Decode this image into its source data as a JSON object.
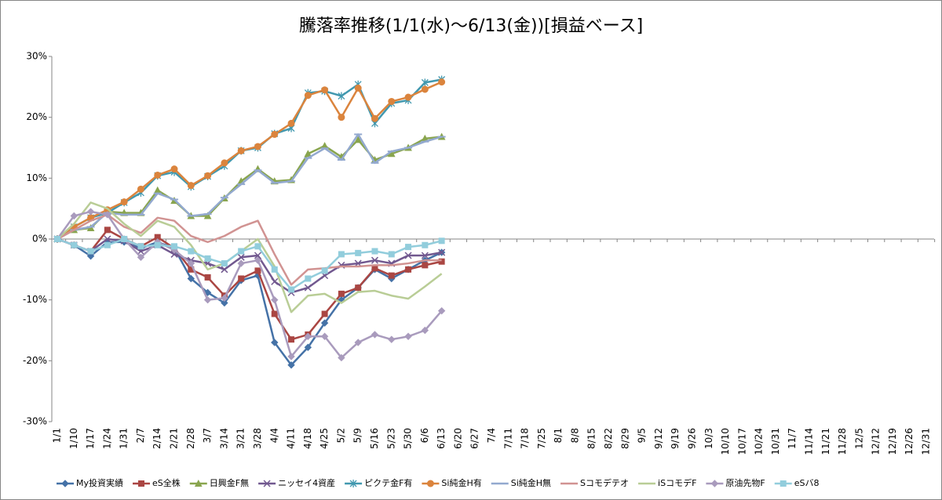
{
  "chart_data": {
    "type": "line",
    "title": "騰落率推移(1/1(水)～6/13(金))[損益ベース]",
    "categories": [
      "1/1",
      "1/10",
      "1/17",
      "1/24",
      "1/31",
      "2/7",
      "2/14",
      "2/21",
      "2/28",
      "3/7",
      "3/14",
      "3/21",
      "3/28",
      "4/4",
      "4/11",
      "4/18",
      "4/25",
      "5/2",
      "5/9",
      "5/16",
      "5/23",
      "5/30",
      "6/6",
      "6/13",
      "6/20",
      "6/27",
      "7/4",
      "7/11",
      "7/18",
      "7/25",
      "8/1",
      "8/8",
      "8/15",
      "8/22",
      "8/29",
      "9/5",
      "9/12",
      "9/19",
      "9/26",
      "10/3",
      "10/10",
      "10/17",
      "10/24",
      "10/31",
      "11/7",
      "11/14",
      "11/21",
      "11/28",
      "12/5",
      "12/12",
      "12/19",
      "12/26",
      "12/31"
    ],
    "ylim": [
      -30,
      30
    ],
    "yticks": [
      {
        "value": -30,
        "label": "-30%"
      },
      {
        "value": -20,
        "label": "-20%"
      },
      {
        "value": -10,
        "label": "-10%"
      },
      {
        "value": 0,
        "label": "0%"
      },
      {
        "value": 10,
        "label": "10%"
      },
      {
        "value": 20,
        "label": "20%"
      },
      {
        "value": 30,
        "label": "30%"
      }
    ],
    "grid": false,
    "legend": "bottom",
    "series": [
      {
        "name": "My投資実績",
        "color": "#4572A7",
        "marker": "diamond",
        "values": [
          0,
          -1,
          -2.8,
          -0.5,
          -0.5,
          -1.5,
          -0.5,
          -1.5,
          -6.5,
          -8.8,
          -10.5,
          -6.8,
          -6,
          -17,
          -20.7,
          -17.8,
          -13.8,
          -10,
          -8,
          -5,
          -6.5,
          -5,
          -3.5,
          -2.2,
          null,
          null,
          null,
          null,
          null,
          null,
          null,
          null,
          null,
          null,
          null,
          null,
          null,
          null,
          null,
          null,
          null,
          null,
          null,
          null,
          null,
          null,
          null,
          null,
          null,
          null,
          null,
          null,
          null
        ]
      },
      {
        "name": "eS全株",
        "color": "#AA4643",
        "marker": "square",
        "values": [
          0,
          -1,
          -2,
          1.5,
          0,
          -1.2,
          0.3,
          -1.5,
          -5,
          -6.3,
          -9.3,
          -6.5,
          -5.2,
          -12.3,
          -16.5,
          -15.7,
          -12.3,
          -9,
          -8,
          -4.8,
          -6,
          -5,
          -4.3,
          -3.7,
          null,
          null,
          null,
          null,
          null,
          null,
          null,
          null,
          null,
          null,
          null,
          null,
          null,
          null,
          null,
          null,
          null,
          null,
          null,
          null,
          null,
          null,
          null,
          null,
          null,
          null,
          null,
          null,
          null
        ]
      },
      {
        "name": "日興金F無",
        "color": "#89A54E",
        "marker": "triangle",
        "values": [
          0,
          1.5,
          1.8,
          4.5,
          4.3,
          4.3,
          8,
          6.3,
          3.8,
          3.8,
          6.7,
          9.5,
          11.5,
          9.5,
          9.7,
          14,
          15.3,
          13.5,
          16.3,
          13,
          14,
          15,
          16.5,
          16.8,
          null,
          null,
          null,
          null,
          null,
          null,
          null,
          null,
          null,
          null,
          null,
          null,
          null,
          null,
          null,
          null,
          null,
          null,
          null,
          null,
          null,
          null,
          null,
          null,
          null,
          null,
          null,
          null,
          null
        ]
      },
      {
        "name": "ニッセイ4資産",
        "color": "#71588F",
        "marker": "x",
        "values": [
          0,
          -1,
          -2,
          0,
          -0.3,
          -2,
          -1,
          -2.5,
          -3.5,
          -4,
          -5,
          -3,
          -2.7,
          -7,
          -8.8,
          -8,
          -6,
          -4.3,
          -4,
          -3.5,
          -4,
          -2.7,
          -2.7,
          -2.2,
          null,
          null,
          null,
          null,
          null,
          null,
          null,
          null,
          null,
          null,
          null,
          null,
          null,
          null,
          null,
          null,
          null,
          null,
          null,
          null,
          null,
          null,
          null,
          null,
          null,
          null,
          null,
          null,
          null
        ]
      },
      {
        "name": "ピクテ金F有",
        "color": "#4198AF",
        "marker": "star",
        "values": [
          0,
          2,
          3.5,
          4.3,
          6,
          7.6,
          10.4,
          11,
          8.6,
          10.3,
          12,
          14.5,
          15,
          17.3,
          18.2,
          24,
          24.3,
          23.5,
          25.4,
          19,
          22.3,
          22.8,
          25.7,
          26.2,
          null,
          null,
          null,
          null,
          null,
          null,
          null,
          null,
          null,
          null,
          null,
          null,
          null,
          null,
          null,
          null,
          null,
          null,
          null,
          null,
          null,
          null,
          null,
          null,
          null,
          null,
          null,
          null,
          null
        ]
      },
      {
        "name": "Si純金H有",
        "color": "#DB843D",
        "marker": "circle",
        "values": [
          0,
          2,
          3.5,
          4.8,
          6.1,
          8.2,
          10.5,
          11.5,
          8.8,
          10.4,
          12.5,
          14.5,
          15.2,
          17.2,
          19,
          23.6,
          24.5,
          20,
          24.8,
          19.8,
          22.6,
          23.3,
          24.6,
          25.8,
          null,
          null,
          null,
          null,
          null,
          null,
          null,
          null,
          null,
          null,
          null,
          null,
          null,
          null,
          null,
          null,
          null,
          null,
          null,
          null,
          null,
          null,
          null,
          null,
          null,
          null,
          null,
          null,
          null
        ]
      },
      {
        "name": "Si純金H無",
        "color": "#93A9CF",
        "marker": "plus",
        "values": [
          0,
          1.5,
          2,
          4.3,
          4,
          4,
          7.5,
          6.5,
          3.8,
          4.1,
          6.8,
          9,
          11.3,
          9.2,
          9.5,
          13.3,
          14.9,
          13,
          17.2,
          12.5,
          14.4,
          15,
          16,
          16.8,
          null,
          null,
          null,
          null,
          null,
          null,
          null,
          null,
          null,
          null,
          null,
          null,
          null,
          null,
          null,
          null,
          null,
          null,
          null,
          null,
          null,
          null,
          null,
          null,
          null,
          null,
          null,
          null,
          null
        ]
      },
      {
        "name": "Sコモデテオ",
        "color": "#D19392",
        "marker": "none",
        "values": [
          0,
          1.5,
          3,
          4,
          2,
          1,
          3.5,
          3,
          0.5,
          -0.5,
          0.5,
          2,
          3,
          -2.5,
          -7.5,
          -5,
          -4.8,
          -4.5,
          -4.5,
          -4.3,
          -4.3,
          -4,
          -3.5,
          -3.5,
          null,
          null,
          null,
          null,
          null,
          null,
          null,
          null,
          null,
          null,
          null,
          null,
          null,
          null,
          null,
          null,
          null,
          null,
          null,
          null,
          null,
          null,
          null,
          null,
          null,
          null,
          null,
          null,
          null
        ]
      },
      {
        "name": "iSコモデF",
        "color": "#B9CD96",
        "marker": "none",
        "values": [
          0,
          2.5,
          6,
          5,
          2.5,
          0.5,
          3,
          2,
          -1,
          -5,
          -4,
          -2,
          0,
          -4.5,
          -12,
          -9.3,
          -9,
          -10.5,
          -8.7,
          -8.5,
          -9.3,
          -9.8,
          -7.8,
          -5.7,
          null,
          null,
          null,
          null,
          null,
          null,
          null,
          null,
          null,
          null,
          null,
          null,
          null,
          null,
          null,
          null,
          null,
          null,
          null,
          null,
          null,
          null,
          null,
          null,
          null,
          null,
          null,
          null,
          null
        ]
      },
      {
        "name": "原油先物F",
        "color": "#A99BBD",
        "marker": "diamond",
        "values": [
          0,
          3.8,
          4.5,
          4,
          0,
          -3,
          -0.5,
          -1.8,
          -4,
          -10,
          -9.7,
          -4,
          -3.5,
          -10,
          -19.3,
          -16,
          -16,
          -19.5,
          -17,
          -15.7,
          -16.5,
          -16,
          -15,
          -11.8,
          null,
          null,
          null,
          null,
          null,
          null,
          null,
          null,
          null,
          null,
          null,
          null,
          null,
          null,
          null,
          null,
          null,
          null,
          null,
          null,
          null,
          null,
          null,
          null,
          null,
          null,
          null,
          null,
          null
        ]
      },
      {
        "name": "eSバ8",
        "color": "#92CDDC",
        "marker": "square",
        "values": [
          0,
          -1,
          -2,
          -1,
          0,
          -1.2,
          -1,
          -1.2,
          -2,
          -3.2,
          -4,
          -2,
          -1.2,
          -5,
          -8.3,
          -6.5,
          -5.2,
          -2.5,
          -2.3,
          -2,
          -2.5,
          -1.3,
          -1,
          -0.3,
          null,
          null,
          null,
          null,
          null,
          null,
          null,
          null,
          null,
          null,
          null,
          null,
          null,
          null,
          null,
          null,
          null,
          null,
          null,
          null,
          null,
          null,
          null,
          null,
          null,
          null,
          null,
          null,
          null
        ]
      }
    ]
  }
}
